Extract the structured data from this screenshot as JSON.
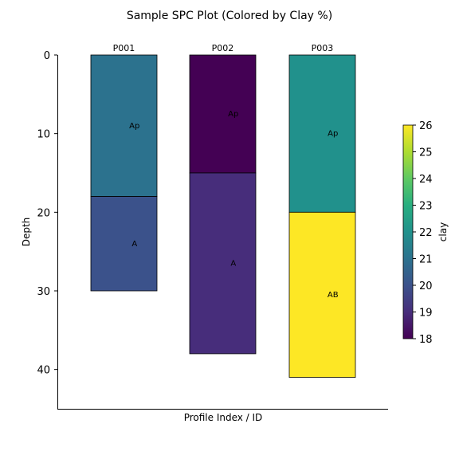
{
  "chart_data": {
    "type": "bar",
    "title": "Sample SPC Plot (Colored by Clay %)",
    "xlabel": "Profile Index / ID",
    "ylabel": "Depth",
    "ylim": [
      0,
      45
    ],
    "y_inverted": true,
    "y_ticks": [
      0,
      10,
      20,
      30,
      40
    ],
    "grid": false,
    "profiles": [
      {
        "id": "P001",
        "horizons": [
          {
            "name": "Ap",
            "top": 0,
            "bottom": 18,
            "clay": 21
          },
          {
            "name": "A",
            "top": 18,
            "bottom": 30,
            "clay": 20
          }
        ]
      },
      {
        "id": "P002",
        "horizons": [
          {
            "name": "Ap",
            "top": 0,
            "bottom": 15,
            "clay": 18
          },
          {
            "name": "A",
            "top": 15,
            "bottom": 38,
            "clay": 19
          }
        ]
      },
      {
        "id": "P003",
        "horizons": [
          {
            "name": "Ap",
            "top": 0,
            "bottom": 20,
            "clay": 22
          },
          {
            "name": "AB",
            "top": 20,
            "bottom": 41,
            "clay": 26
          }
        ]
      }
    ],
    "colorbar": {
      "label": "clay",
      "range": [
        18,
        26
      ],
      "ticks": [
        18,
        19,
        20,
        21,
        22,
        23,
        24,
        25,
        26
      ],
      "colormap": "viridis",
      "placement": "right"
    }
  }
}
